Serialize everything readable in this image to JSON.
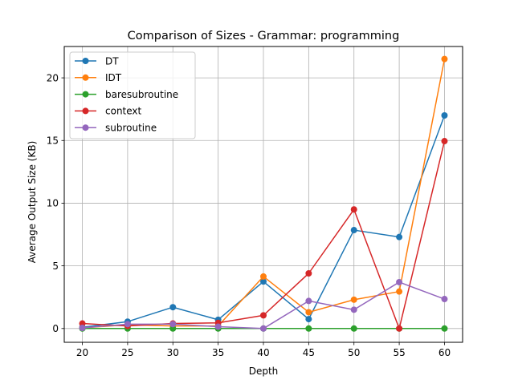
{
  "chart_data": {
    "type": "line",
    "title": "Comparison of Sizes - Grammar: programming",
    "xlabel": "Depth",
    "ylabel": "Average Output Size (KB)",
    "x": [
      20,
      25,
      30,
      35,
      40,
      45,
      50,
      55,
      60
    ],
    "xlim": [
      18,
      62
    ],
    "ylim": [
      -1.1,
      22.5
    ],
    "xticks": [
      20,
      25,
      30,
      35,
      40,
      45,
      50,
      55,
      60
    ],
    "yticks": [
      0,
      5,
      10,
      15,
      20
    ],
    "grid": true,
    "legend_position": "top-left",
    "series": [
      {
        "name": "DT",
        "color": "#1f77b4",
        "values": [
          0.1,
          0.55,
          1.7,
          0.7,
          3.75,
          0.75,
          7.85,
          7.3,
          17.0
        ]
      },
      {
        "name": "IDT",
        "color": "#ff7f0e",
        "values": [
          0.05,
          0.3,
          0.2,
          0.2,
          4.15,
          1.3,
          2.3,
          2.95,
          21.5
        ]
      },
      {
        "name": "baresubroutine",
        "color": "#2ca02c",
        "values": [
          0.0,
          0.0,
          0.0,
          0.0,
          0.0,
          0.0,
          0.0,
          0.0,
          0.0
        ]
      },
      {
        "name": "context",
        "color": "#d62728",
        "values": [
          0.4,
          0.2,
          0.4,
          0.45,
          1.05,
          4.4,
          9.5,
          0.0,
          14.95
        ]
      },
      {
        "name": "subroutine",
        "color": "#9467bd",
        "values": [
          0.05,
          0.35,
          0.35,
          0.15,
          0.0,
          2.2,
          1.5,
          3.7,
          2.35
        ]
      }
    ]
  }
}
